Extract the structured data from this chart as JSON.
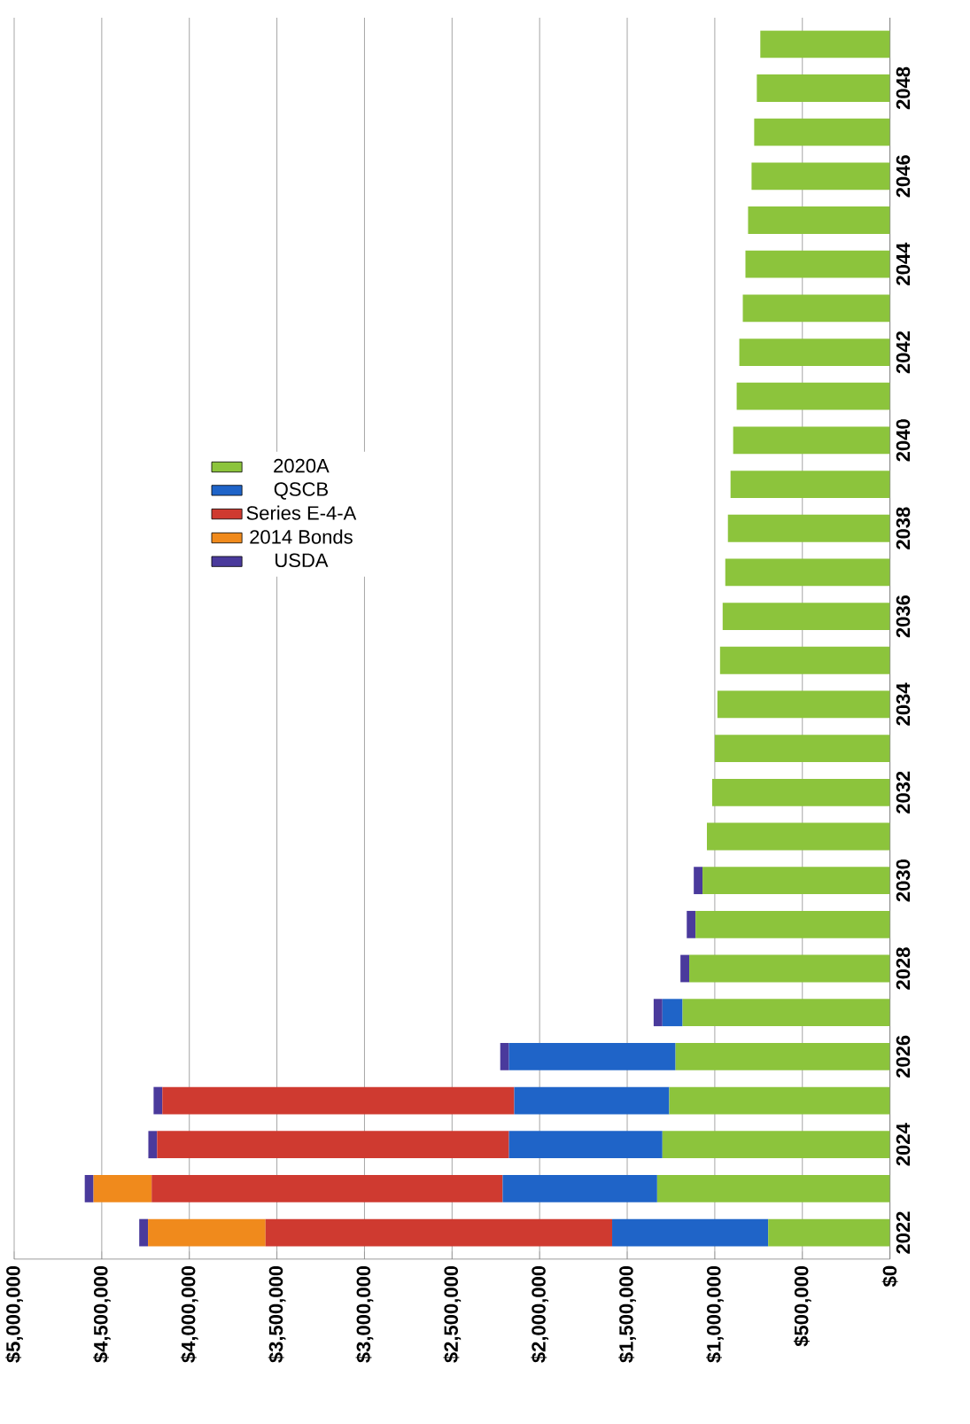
{
  "chart_data": {
    "type": "bar",
    "orientation": "horizontal",
    "stacked": true,
    "grid": "x",
    "legend": "left",
    "categories": [
      null,
      "2048",
      null,
      "2046",
      null,
      "2044",
      null,
      "2042",
      null,
      "2040",
      null,
      "2038",
      null,
      "2036",
      null,
      "2034",
      null,
      "2032",
      null,
      "2030",
      null,
      "2028",
      null,
      "2026",
      null,
      "2024",
      null,
      "2022"
    ],
    "xlim": [
      5000000,
      0
    ],
    "xticks": [
      {
        "value": 5000000,
        "label": "$5,000,000"
      },
      {
        "value": 4500000,
        "label": "$4,500,000"
      },
      {
        "value": 4000000,
        "label": "$4,000,000"
      },
      {
        "value": 3500000,
        "label": "$3,500,000"
      },
      {
        "value": 3000000,
        "label": "$3,000,000"
      },
      {
        "value": 2500000,
        "label": "$2,500,000"
      },
      {
        "value": 2000000,
        "label": "$2,000,000"
      },
      {
        "value": 1500000,
        "label": "$1,500,000"
      },
      {
        "value": 1000000,
        "label": "$1,000,000"
      },
      {
        "value": 500000,
        "label": "$500,000"
      },
      {
        "value": 0,
        "label": "$0"
      }
    ],
    "series": [
      {
        "name": "2020A",
        "color": "#8cc43c",
        "values": [
          740000,
          760000,
          775000,
          790000,
          810000,
          825000,
          840000,
          860000,
          875000,
          895000,
          910000,
          925000,
          940000,
          955000,
          970000,
          985000,
          1000000,
          1015000,
          1045000,
          1070000,
          1110000,
          1146000,
          1184000,
          1224000,
          1260000,
          1299000,
          1329000,
          695000
        ]
      },
      {
        "name": "QSCB",
        "color": "#1f64c8",
        "values": [
          null,
          null,
          null,
          null,
          null,
          null,
          null,
          null,
          null,
          null,
          null,
          null,
          null,
          null,
          null,
          null,
          null,
          null,
          null,
          null,
          null,
          null,
          115000,
          951000,
          885000,
          876000,
          882000,
          891000
        ]
      },
      {
        "name": "Series E-4-A",
        "color": "#cf3a30",
        "values": [
          null,
          null,
          null,
          null,
          null,
          null,
          null,
          null,
          null,
          null,
          null,
          null,
          null,
          null,
          null,
          null,
          null,
          null,
          null,
          null,
          null,
          null,
          null,
          null,
          2009000,
          2009000,
          2004000,
          1979000
        ]
      },
      {
        "name": "2014 Bonds",
        "color": "#f08a1c",
        "values": [
          null,
          null,
          null,
          null,
          null,
          null,
          null,
          null,
          null,
          null,
          null,
          null,
          null,
          null,
          null,
          null,
          null,
          null,
          null,
          null,
          null,
          null,
          null,
          null,
          null,
          null,
          332000,
          671000
        ]
      },
      {
        "name": "USDA",
        "color": "#4a3a9c",
        "values": [
          null,
          null,
          null,
          null,
          null,
          null,
          null,
          null,
          null,
          null,
          null,
          null,
          null,
          null,
          null,
          null,
          null,
          null,
          null,
          50000,
          50000,
          50000,
          50000,
          50000,
          50000,
          50000,
          50000,
          50000
        ]
      }
    ]
  }
}
